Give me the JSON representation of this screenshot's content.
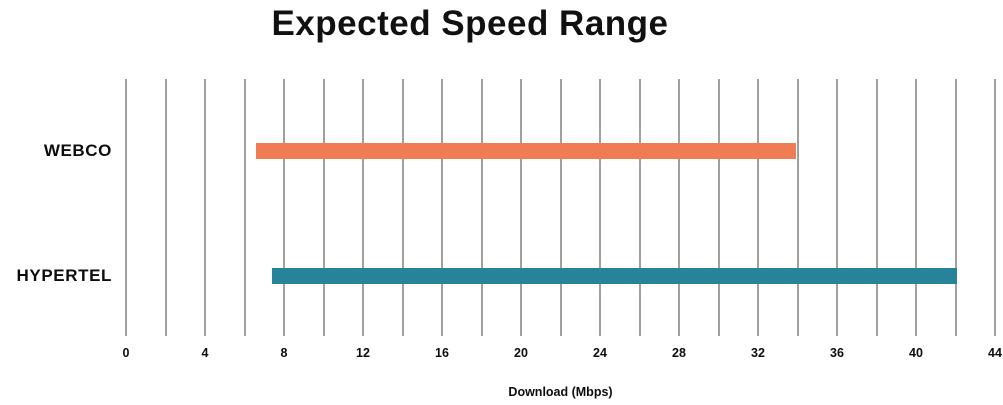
{
  "chart_data": {
    "type": "bar",
    "subtype": "horizontal-range-bars",
    "title": "Expected Speed Range",
    "xlabel": "Download (Mbps)",
    "xlim": [
      0,
      44
    ],
    "tick_step": 4,
    "grid_step": 2,
    "grid_on": true,
    "legend": "none",
    "colors": {
      "gridline": "#a3a09b",
      "text": "#0d0d0d",
      "background": "#ffffff"
    },
    "categories": [
      "WEBCO",
      "HYPERTEL"
    ],
    "bars": [
      {
        "label": "WEBCO",
        "start": 6.6,
        "end": 33.9,
        "color": "#ef7c55"
      },
      {
        "label": "HYPERTEL",
        "start": 7.4,
        "end": 42.1,
        "color": "#27839a"
      }
    ]
  }
}
